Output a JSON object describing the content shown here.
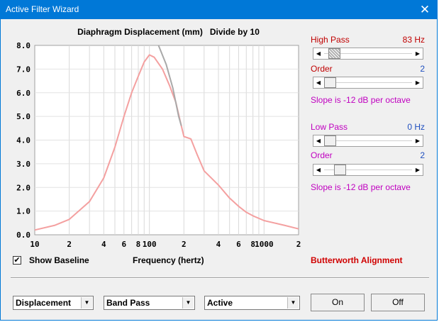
{
  "window": {
    "title": "Active Filter Wizard",
    "close_glyph": "✕"
  },
  "chart_data": {
    "type": "line",
    "title": "Diaphragm Displacement (mm)   Divide by 10",
    "xlabel": "Frequency (hertz)",
    "ylabel": "",
    "x_scale": "log",
    "xlim": [
      10,
      2000
    ],
    "ylim": [
      0,
      8
    ],
    "grid": true,
    "yticks": [
      "0.0",
      "1.0",
      "2.0",
      "3.0",
      "4.0",
      "5.0",
      "6.0",
      "7.0",
      "8.0"
    ],
    "xticks": [
      {
        "value": 10,
        "label": "10"
      },
      {
        "value": 20,
        "label": "2"
      },
      {
        "value": 40,
        "label": "4"
      },
      {
        "value": 60,
        "label": "6"
      },
      {
        "value": 80,
        "label": "8"
      },
      {
        "value": 100,
        "label": "100"
      },
      {
        "value": 200,
        "label": "2"
      },
      {
        "value": 400,
        "label": "4"
      },
      {
        "value": 600,
        "label": "6"
      },
      {
        "value": 800,
        "label": "8"
      },
      {
        "value": 1000,
        "label": "1000"
      },
      {
        "value": 2000,
        "label": "2"
      }
    ],
    "series": [
      {
        "role": "active",
        "color": "#f4a0a0",
        "x": [
          10,
          15,
          20,
          30,
          40,
          50,
          60,
          70,
          80,
          90,
          100,
          110,
          130,
          150,
          170,
          190,
          200,
          230,
          260,
          300,
          400,
          500,
          600,
          700,
          800,
          1000,
          1500,
          2000
        ],
        "y": [
          0.2,
          0.4,
          0.65,
          1.4,
          2.4,
          3.7,
          5.0,
          6.0,
          6.7,
          7.3,
          7.6,
          7.5,
          7.0,
          6.3,
          5.6,
          4.6,
          4.15,
          4.05,
          3.4,
          2.7,
          2.1,
          1.55,
          1.2,
          0.95,
          0.8,
          0.6,
          0.4,
          0.25
        ]
      },
      {
        "role": "baseline",
        "color": "#a9a9a9",
        "x": [
          120,
          140,
          160,
          180,
          190
        ],
        "y": [
          8.0,
          7.2,
          6.2,
          5.0,
          4.6
        ]
      }
    ]
  },
  "high_pass": {
    "label": "High Pass",
    "value": "83 Hz",
    "slider_fraction": 0.06
  },
  "high_order": {
    "label": "Order",
    "value": "2",
    "slider_fraction": 0.0
  },
  "high_slope": "Slope is -12 dB per octave",
  "low_pass": {
    "label": "Low Pass",
    "value": "0 Hz",
    "slider_fraction": 0.0
  },
  "low_order": {
    "label": "Order",
    "value": "2",
    "slider_fraction": 0.13
  },
  "low_slope": "Slope is -12 dB per octave",
  "show_baseline": {
    "label": "Show Baseline",
    "checked": true,
    "check_glyph": "✔"
  },
  "alignment": "Butterworth Alignment",
  "dropdowns": {
    "display": "Displacement",
    "filter_type": "Band Pass",
    "mode": "Active"
  },
  "buttons": {
    "on": "On",
    "off": "Off"
  },
  "glyphs": {
    "left": "◀",
    "right": "▶",
    "down": "▼"
  }
}
